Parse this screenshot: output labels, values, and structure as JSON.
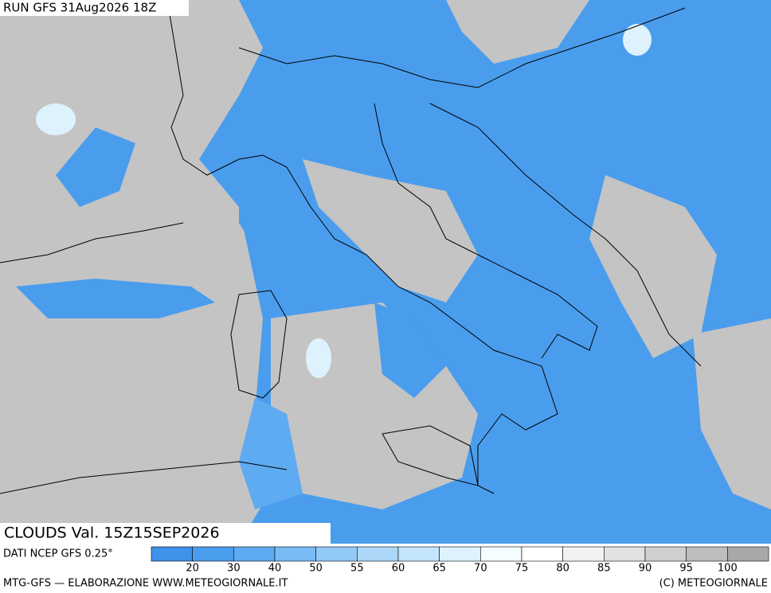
{
  "header": {
    "run": "RUN GFS 31Aug2026 18Z",
    "field": "CLOUDS Val. 15Z15SEP2026",
    "source": "DATI NCEP GFS 0.25°"
  },
  "footer": {
    "left": "MTG-GFS — ELABORAZIONE WWW.METEOGIORNALE.IT",
    "right": "(C) METEOGIORNALE"
  },
  "legend": {
    "levels": [
      20,
      30,
      40,
      50,
      55,
      60,
      65,
      70,
      75,
      80,
      85,
      90,
      95,
      100
    ],
    "colors": [
      "#3e92ea",
      "#4a9ded",
      "#5eabf1",
      "#79bbf4",
      "#93c9f7",
      "#acd7f9",
      "#c4e5fb",
      "#ddf2fd",
      "#f4fdff",
      "#ffffff",
      "#f2f2f2",
      "#e2e2e2",
      "#d0d0d0",
      "#bebebe",
      "#a8a8a8"
    ]
  }
}
